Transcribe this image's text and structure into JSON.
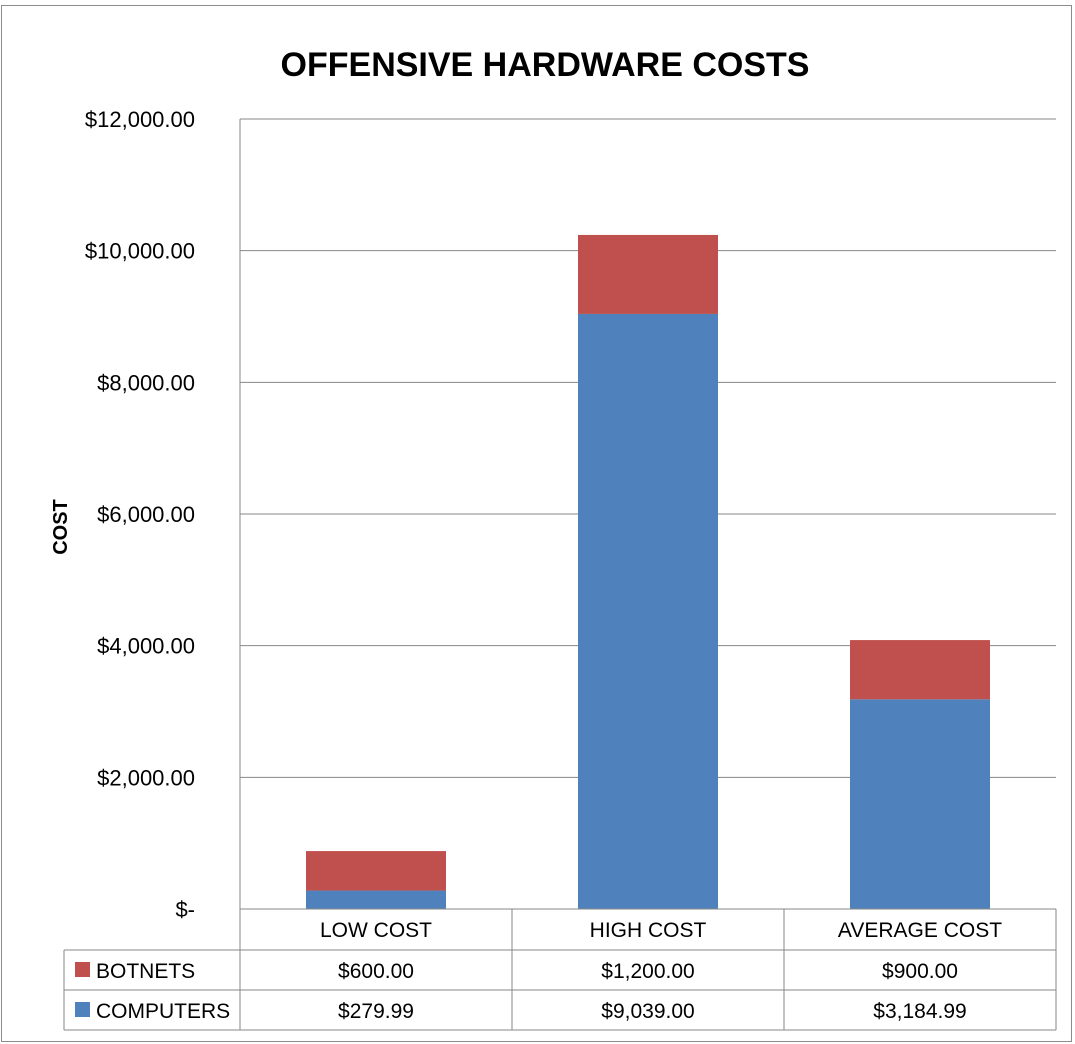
{
  "chart_data": {
    "type": "bar",
    "stacked": true,
    "title": "OFFENSIVE HARDWARE COSTS",
    "xlabel": "",
    "ylabel": "COST",
    "categories": [
      "LOW COST",
      "HIGH COST",
      "AVERAGE COST"
    ],
    "series": [
      {
        "name": "COMPUTERS",
        "values": [
          279.99,
          9039.0,
          3184.99
        ],
        "labels": [
          "$279.99",
          "$9,039.00",
          "$3,184.99"
        ],
        "color": "#4f81bd"
      },
      {
        "name": "BOTNETS",
        "values": [
          600.0,
          1200.0,
          900.0
        ],
        "labels": [
          "$600.00",
          "$1,200.00",
          "$900.00"
        ],
        "color": "#c0504d"
      }
    ],
    "ylim": [
      0,
      12000
    ],
    "yticks": [
      {
        "value": 0,
        "label": "$-"
      },
      {
        "value": 2000,
        "label": "$2,000.00"
      },
      {
        "value": 4000,
        "label": "$4,000.00"
      },
      {
        "value": 6000,
        "label": "$6,000.00"
      },
      {
        "value": 8000,
        "label": "$8,000.00"
      },
      {
        "value": 10000,
        "label": "$10,000.00"
      },
      {
        "value": 12000,
        "label": "$12,000.00"
      }
    ],
    "grid": true,
    "legend": "data-table",
    "table_row_order": [
      "BOTNETS",
      "COMPUTERS"
    ]
  }
}
